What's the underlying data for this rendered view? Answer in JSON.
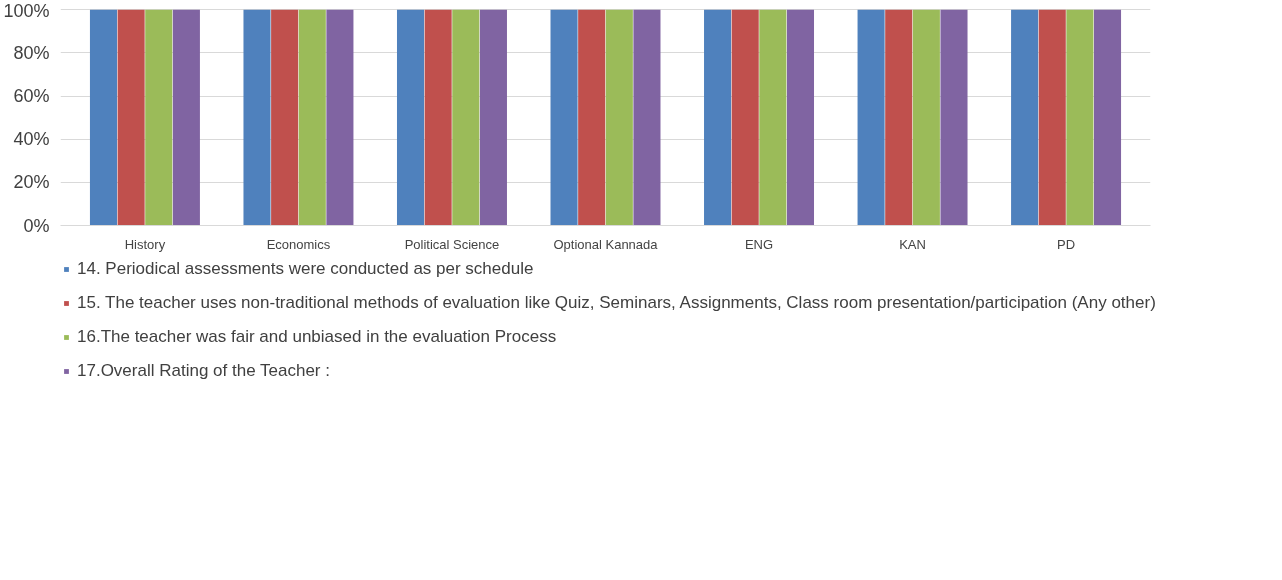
{
  "chart_data": {
    "type": "bar",
    "categories": [
      "History",
      "Economics",
      "Political Science",
      "Optional Kannada",
      "ENG",
      "KAN",
      "PD"
    ],
    "series": [
      {
        "name": "14. Periodical assessments were conducted as per schedule",
        "color": "#4f81bd",
        "values": [
          100,
          100,
          100,
          100,
          100,
          100,
          100
        ]
      },
      {
        "name": "15. The teacher uses non-traditional methods of evaluation like Quiz, Seminars, Assignments, Class room presentation/participation (Any other)",
        "color": "#c0504d",
        "values": [
          100,
          100,
          100,
          100,
          100,
          100,
          100
        ]
      },
      {
        "name": "16.The teacher was fair and unbiased in the evaluation Process",
        "color": "#9bbb59",
        "values": [
          100,
          100,
          100,
          100,
          100,
          100,
          100
        ]
      },
      {
        "name": "17.Overall Rating of the Teacher :",
        "color": "#8064a2",
        "values": [
          100,
          100,
          100,
          100,
          100,
          100,
          100
        ]
      }
    ],
    "ylim": [
      0,
      100
    ],
    "yticks": [
      {
        "value": 0,
        "label": "0%"
      },
      {
        "value": 20,
        "label": "20%"
      },
      {
        "value": 40,
        "label": "40%"
      },
      {
        "value": 60,
        "label": "60%"
      },
      {
        "value": 80,
        "label": "80%"
      },
      {
        "value": 100,
        "label": "100%"
      }
    ],
    "grid": "y",
    "legend": "bottom"
  }
}
